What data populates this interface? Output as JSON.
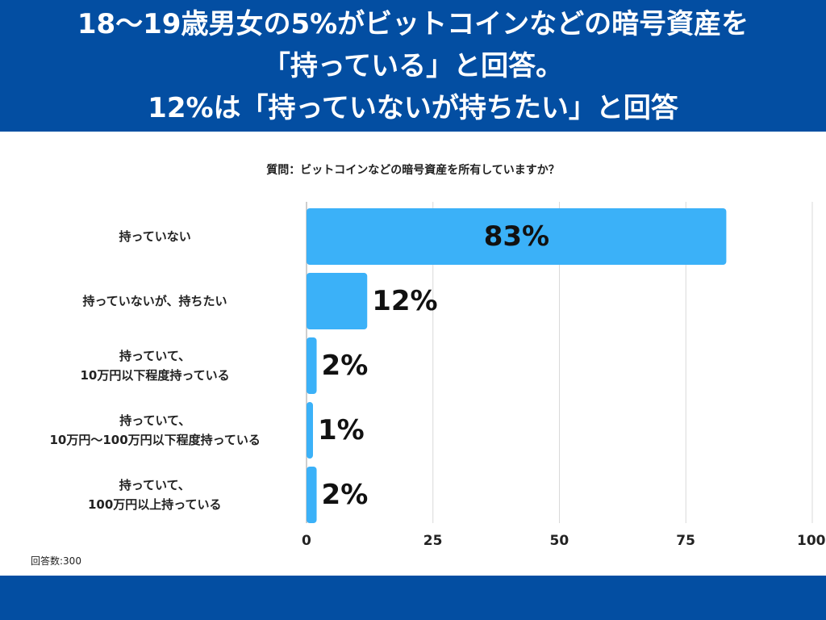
{
  "header": {
    "lines": [
      "18〜19歳男女の5%がビットコインなどの暗号資産を",
      "「持っている」と回答。",
      "12%は「持っていないが持ちたい」と回答"
    ]
  },
  "colors": {
    "header_bg": "#034ea2",
    "bar": "#3bb1f8",
    "grid": "#d9d9d9"
  },
  "chart_data": {
    "type": "bar",
    "orientation": "horizontal",
    "title": "質問：ビットコインなどの暗号資産を所有していますか？",
    "categories": [
      [
        "持っていない"
      ],
      [
        "持っていないが、持ちたい"
      ],
      [
        "持っていて、",
        "10万円以下程度持っている"
      ],
      [
        "持っていて、",
        "10万円〜100万円以下程度持っている"
      ],
      [
        "持っていて、",
        "100万円以上持っている"
      ]
    ],
    "values": [
      83,
      12,
      2,
      1,
      2
    ],
    "value_labels": [
      "83%",
      "12%",
      "2%",
      "1%",
      "2%"
    ],
    "xlim": [
      0,
      100
    ],
    "xticks": [
      "0",
      "25",
      "50",
      "75",
      "100"
    ],
    "grid": true
  },
  "footer": {
    "respondents": "回答数:300"
  }
}
